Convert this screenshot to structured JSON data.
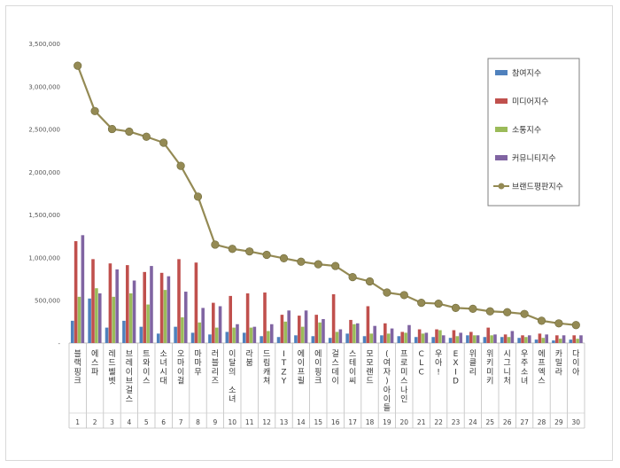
{
  "chart_data": {
    "type": "bar",
    "categories": [
      "블랙핑크",
      "에스파",
      "레드벨벳",
      "브레이브걸스",
      "트와이스",
      "소녀시대",
      "오마이걸",
      "마마무",
      "러블리즈",
      "이달의 소녀",
      "라붐",
      "드림캐쳐",
      "ITZY",
      "에이프릴",
      "에이핑크",
      "걸스데이",
      "스테이씨",
      "모모랜드",
      "(여자)아이들",
      "프로미스나인",
      "CLC",
      "우아!",
      "EXID",
      "위클리",
      "위키미키",
      "시그니처",
      "우주소녀",
      "에프엑스",
      "카밀라",
      "다이아"
    ],
    "ranks": [
      "1",
      "2",
      "3",
      "4",
      "5",
      "6",
      "7",
      "8",
      "9",
      "10",
      "11",
      "12",
      "13",
      "14",
      "15",
      "16",
      "17",
      "18",
      "19",
      "20",
      "21",
      "22",
      "23",
      "24",
      "25",
      "26",
      "27",
      "28",
      "29",
      "30"
    ],
    "series": [
      {
        "name": "참여지수",
        "kind": "bar",
        "color": "#4f81bd",
        "values": [
          260000,
          520000,
          180000,
          260000,
          190000,
          110000,
          190000,
          120000,
          100000,
          130000,
          120000,
          80000,
          70000,
          90000,
          80000,
          60000,
          110000,
          80000,
          90000,
          80000,
          70000,
          70000,
          60000,
          90000,
          70000,
          70000,
          60000,
          40000,
          30000,
          40000
        ]
      },
      {
        "name": "미디어지수",
        "kind": "bar",
        "color": "#c0504d",
        "values": [
          1190000,
          980000,
          930000,
          910000,
          830000,
          820000,
          980000,
          940000,
          470000,
          550000,
          580000,
          590000,
          330000,
          320000,
          330000,
          570000,
          270000,
          430000,
          230000,
          130000,
          160000,
          160000,
          150000,
          130000,
          180000,
          100000,
          90000,
          110000,
          90000,
          90000
        ]
      },
      {
        "name": "소통지수",
        "kind": "bar",
        "color": "#9bbb59",
        "values": [
          540000,
          640000,
          540000,
          580000,
          450000,
          620000,
          300000,
          240000,
          180000,
          180000,
          180000,
          140000,
          250000,
          190000,
          240000,
          130000,
          220000,
          110000,
          110000,
          120000,
          110000,
          150000,
          80000,
          90000,
          90000,
          70000,
          70000,
          60000,
          50000,
          50000
        ]
      },
      {
        "name": "커뮤니티지수",
        "kind": "bar",
        "color": "#8064a2",
        "values": [
          1260000,
          580000,
          860000,
          730000,
          900000,
          780000,
          600000,
          410000,
          430000,
          220000,
          190000,
          220000,
          380000,
          380000,
          280000,
          160000,
          230000,
          200000,
          170000,
          210000,
          120000,
          90000,
          120000,
          90000,
          100000,
          140000,
          90000,
          100000,
          90000,
          90000
        ]
      },
      {
        "name": "브랜드평판지수",
        "kind": "line",
        "color": "#948a54",
        "values": [
          3240000,
          2710000,
          2500000,
          2470000,
          2410000,
          2340000,
          2070000,
          1710000,
          1150000,
          1100000,
          1070000,
          1030000,
          990000,
          950000,
          920000,
          900000,
          770000,
          720000,
          590000,
          560000,
          470000,
          460000,
          410000,
          400000,
          370000,
          360000,
          340000,
          260000,
          230000,
          210000
        ]
      }
    ],
    "ylim": [
      0,
      3500000
    ],
    "yticks": [
      0,
      500000,
      1000000,
      1500000,
      2000000,
      2500000,
      3000000,
      3500000
    ],
    "ytick_labels": [
      "-",
      "500,000",
      "1,000,000",
      "1,500,000",
      "2,000,000",
      "2,500,000",
      "3,000,000",
      "3,500,000"
    ],
    "legend_position": "right",
    "grid": false
  }
}
